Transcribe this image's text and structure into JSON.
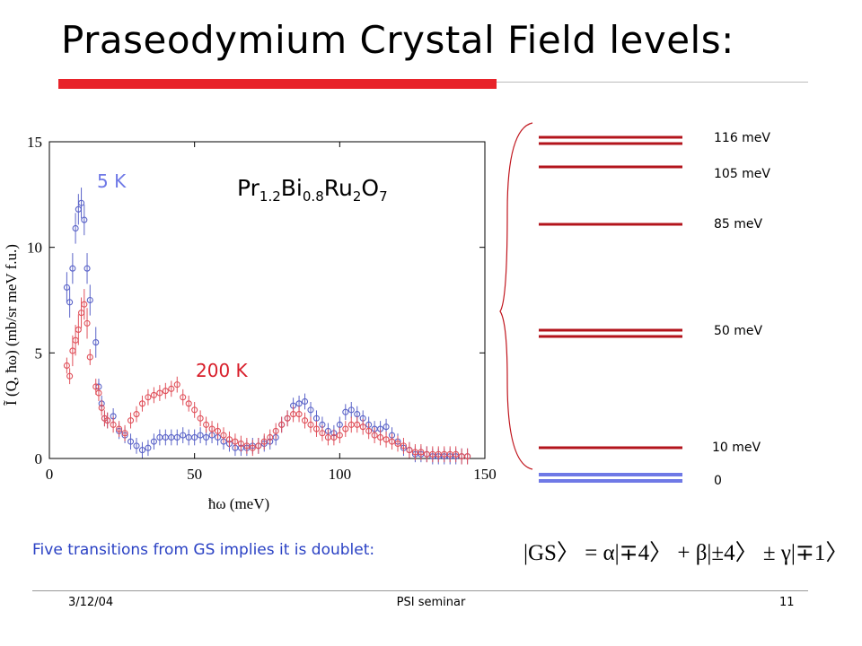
{
  "slide": {
    "title": "Praseodymium Crystal Field levels:",
    "date": "3/12/04",
    "footer_center": "PSI seminar",
    "page_number": "11"
  },
  "plot": {
    "compound": {
      "base1": "Pr",
      "sub1": "1.2",
      "base2": "Bi",
      "sub2": "0.8",
      "base3": "Ru",
      "sub3": "2",
      "base4": "O",
      "sub4": "7"
    },
    "label_low_T": "5 K",
    "label_high_T": "200 K"
  },
  "chart_data": {
    "type": "scatter",
    "title": "",
    "xlabel": "ħω (meV)",
    "ylabel": "Ĩ (Q, ħω) (mb/sr meV f.u.)",
    "xlim": [
      0,
      150
    ],
    "ylim": [
      0,
      15
    ],
    "xticks": [
      0,
      50,
      100,
      150
    ],
    "yticks": [
      0,
      5,
      10,
      15
    ],
    "colors": {
      "5K": "#5a63c8",
      "200K": "#e0505a"
    },
    "series": [
      {
        "name": "5 K",
        "x": [
          6,
          7,
          8,
          9,
          10,
          11,
          12,
          13,
          14,
          16,
          17,
          18,
          19,
          20,
          22,
          24,
          26,
          28,
          30,
          32,
          34,
          36,
          38,
          40,
          42,
          44,
          46,
          48,
          50,
          52,
          54,
          56,
          58,
          60,
          62,
          64,
          66,
          68,
          70,
          72,
          74,
          76,
          78,
          80,
          82,
          84,
          86,
          88,
          90,
          92,
          94,
          96,
          98,
          100,
          102,
          104,
          106,
          108,
          110,
          112,
          114,
          116,
          118,
          120,
          122,
          124,
          126,
          128,
          130,
          132,
          134,
          136,
          138,
          140,
          142,
          144
        ],
        "y": [
          8.1,
          7.4,
          9.0,
          10.9,
          11.8,
          12.1,
          11.3,
          9.0,
          7.5,
          5.5,
          3.4,
          2.6,
          1.9,
          1.8,
          2.0,
          1.3,
          1.1,
          0.8,
          0.6,
          0.4,
          0.5,
          0.8,
          1.0,
          1.0,
          1.0,
          1.0,
          1.1,
          1.0,
          1.0,
          1.1,
          1.0,
          1.1,
          1.0,
          0.8,
          0.7,
          0.5,
          0.5,
          0.5,
          0.6,
          0.6,
          0.7,
          0.8,
          1.0,
          1.6,
          1.9,
          2.5,
          2.6,
          2.7,
          2.3,
          1.9,
          1.6,
          1.3,
          1.2,
          1.6,
          2.2,
          2.3,
          2.1,
          1.9,
          1.6,
          1.4,
          1.4,
          1.5,
          1.1,
          0.8,
          0.5,
          0.4,
          0.2,
          0.2,
          0.2,
          0.1,
          0.1,
          0.1,
          0.1,
          0.1,
          0.1,
          0.1
        ]
      },
      {
        "name": "200 K",
        "x": [
          6,
          7,
          8,
          9,
          10,
          11,
          12,
          13,
          14,
          16,
          17,
          18,
          19,
          20,
          22,
          24,
          26,
          28,
          30,
          32,
          34,
          36,
          38,
          40,
          42,
          44,
          46,
          48,
          50,
          52,
          54,
          56,
          58,
          60,
          62,
          64,
          66,
          68,
          70,
          72,
          74,
          76,
          78,
          80,
          82,
          84,
          86,
          88,
          90,
          92,
          94,
          96,
          98,
          100,
          102,
          104,
          106,
          108,
          110,
          112,
          114,
          116,
          118,
          120,
          122,
          124,
          126,
          128,
          130,
          132,
          134,
          136,
          138,
          140,
          142,
          144
        ],
        "y": [
          4.4,
          3.9,
          5.1,
          5.6,
          6.1,
          6.9,
          7.3,
          6.4,
          4.8,
          3.4,
          3.1,
          2.4,
          1.9,
          1.8,
          1.6,
          1.4,
          1.2,
          1.8,
          2.1,
          2.6,
          2.9,
          3.0,
          3.1,
          3.2,
          3.3,
          3.5,
          2.9,
          2.6,
          2.3,
          1.9,
          1.6,
          1.4,
          1.3,
          1.1,
          0.9,
          0.8,
          0.7,
          0.6,
          0.5,
          0.6,
          0.8,
          1.0,
          1.3,
          1.6,
          1.9,
          2.1,
          2.1,
          1.8,
          1.6,
          1.4,
          1.2,
          1.0,
          1.0,
          1.1,
          1.4,
          1.6,
          1.6,
          1.5,
          1.3,
          1.1,
          1.0,
          0.9,
          0.8,
          0.7,
          0.6,
          0.4,
          0.3,
          0.3,
          0.2,
          0.2,
          0.2,
          0.2,
          0.2,
          0.2,
          0.1,
          0.1
        ]
      }
    ]
  },
  "levels": {
    "labels": [
      "116 meV",
      "105 meV",
      "85 meV",
      "50 meV",
      "10 meV",
      "0"
    ],
    "energies_meV": [
      116,
      105,
      85,
      50,
      10,
      0
    ],
    "doubled": [
      true,
      false,
      false,
      true,
      false,
      true
    ],
    "level_color": "#b3141c",
    "ground_color": "#6f79e6"
  },
  "footer_note": "Five transitions from GS implies it is doublet:",
  "ground_state_equation": "|GS〉 = α|∓4〉 + β|±4〉 ± γ|∓1〉"
}
